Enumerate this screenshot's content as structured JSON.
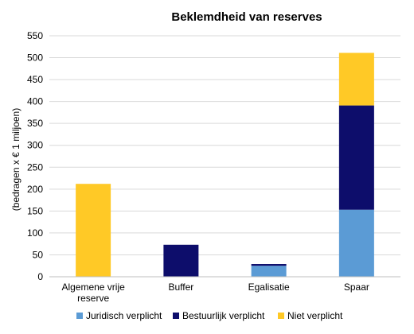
{
  "chart_data": {
    "type": "bar",
    "stacked": true,
    "title": "Beklemdheid van reserves",
    "ylabel": "(bedragen x € 1 miljoen)",
    "xlabel": "",
    "ylim": [
      0,
      550
    ],
    "yticks": [
      0,
      50,
      100,
      150,
      200,
      250,
      300,
      350,
      400,
      450,
      500,
      550
    ],
    "grid": true,
    "legend_position": "bottom",
    "categories": [
      [
        "Algemene vrije",
        "reserve"
      ],
      [
        "Buffer"
      ],
      [
        "Egalisatie"
      ],
      [
        "Spaar"
      ]
    ],
    "series": [
      {
        "name": "Juridisch verplicht",
        "color": "#5b9bd5",
        "values": [
          0,
          0,
          25,
          153
        ]
      },
      {
        "name": "Bestuurlijk verplicht",
        "color": "#0d0d6b",
        "values": [
          0,
          73,
          4,
          238
        ]
      },
      {
        "name": "Niet verplicht",
        "color": "#ffc926",
        "values": [
          212,
          0,
          0,
          120
        ]
      }
    ]
  }
}
